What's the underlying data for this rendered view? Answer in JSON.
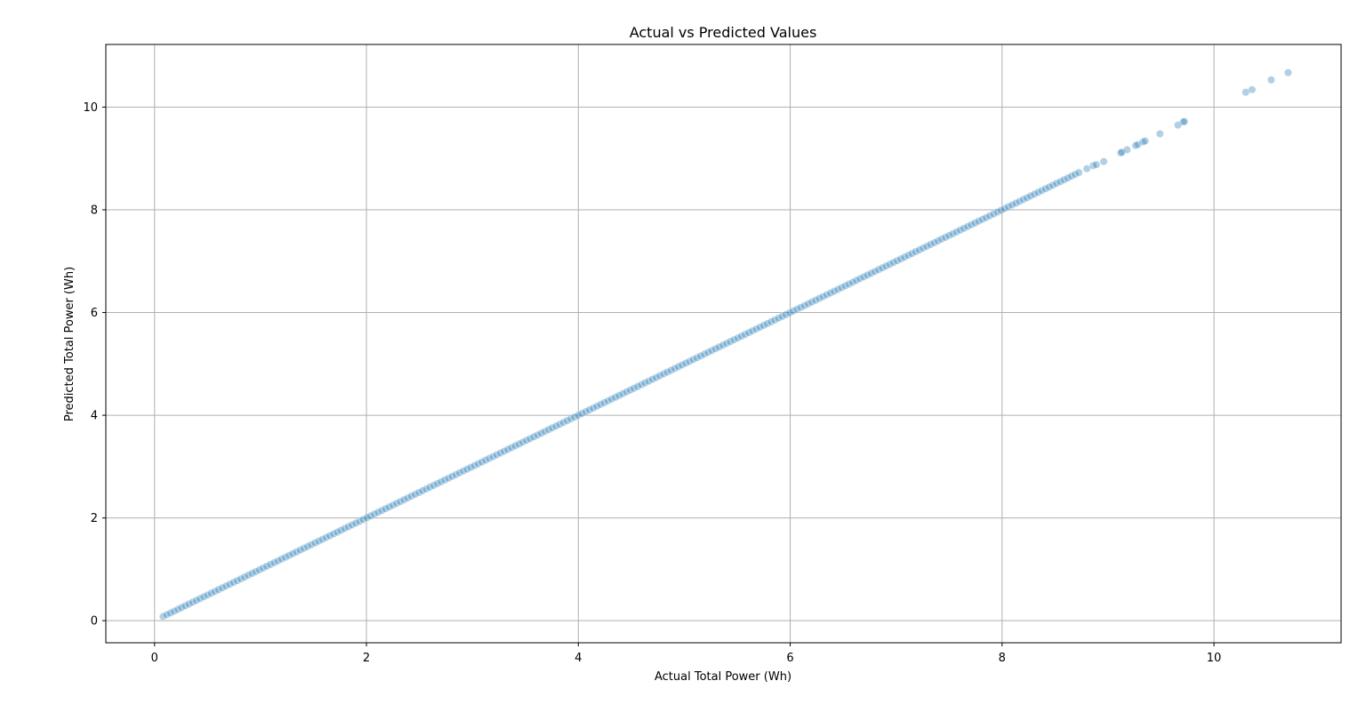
{
  "chart_data": {
    "type": "scatter",
    "title": "Actual vs Predicted Values",
    "xlabel": "Actual Total Power (Wh)",
    "ylabel": "Predicted Total Power (Wh)",
    "xlim": [
      -0.46,
      11.2
    ],
    "ylim": [
      -0.43,
      11.22
    ],
    "xticks": [
      0,
      2,
      4,
      6,
      8,
      10
    ],
    "yticks": [
      0,
      2,
      4,
      6,
      8,
      10
    ],
    "grid": true,
    "point_color": "#1f77b4",
    "point_alpha": 0.35,
    "series": [
      {
        "line_segment": {
          "x_start": 0.08,
          "x_end": 8.75,
          "step": 0.035,
          "slope": 1.0,
          "intercept": 0.0
        },
        "points": [
          {
            "x": 8.8,
            "y": 8.8
          },
          {
            "x": 8.86,
            "y": 8.86
          },
          {
            "x": 8.89,
            "y": 8.88
          },
          {
            "x": 8.96,
            "y": 8.94
          },
          {
            "x": 9.12,
            "y": 9.11
          },
          {
            "x": 9.13,
            "y": 9.12
          },
          {
            "x": 9.18,
            "y": 9.17
          },
          {
            "x": 9.26,
            "y": 9.25
          },
          {
            "x": 9.28,
            "y": 9.27
          },
          {
            "x": 9.33,
            "y": 9.32
          },
          {
            "x": 9.35,
            "y": 9.34
          },
          {
            "x": 9.49,
            "y": 9.48
          },
          {
            "x": 9.66,
            "y": 9.65
          },
          {
            "x": 9.71,
            "y": 9.71
          },
          {
            "x": 9.72,
            "y": 9.72
          },
          {
            "x": 10.3,
            "y": 10.29
          },
          {
            "x": 10.36,
            "y": 10.34
          },
          {
            "x": 10.54,
            "y": 10.53
          },
          {
            "x": 10.7,
            "y": 10.67
          }
        ]
      }
    ]
  }
}
